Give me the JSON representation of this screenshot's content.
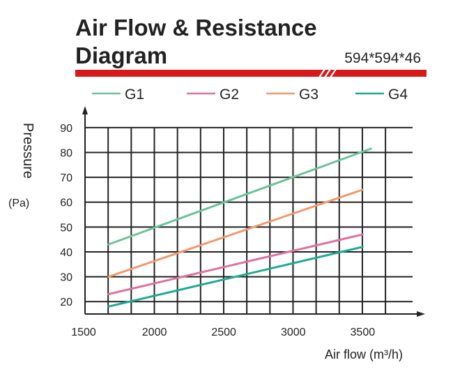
{
  "title_line1": "Air Flow & Resistance",
  "title_line2": "Diagram",
  "model": "594*594*46",
  "colors": {
    "red_bar": "#d7191c",
    "axis": "#222222",
    "G1": "#6cc49a",
    "G2": "#e0719e",
    "G3": "#f19a6c",
    "G4": "#1fab93"
  },
  "chart_data": {
    "type": "line",
    "xlabel": "Air flow (m³/h)",
    "ylabel": "Pressure",
    "ylabel_unit": "(Pa)",
    "x_ticks": [
      1500,
      2000,
      2500,
      3000,
      3500
    ],
    "y_ticks": [
      20,
      30,
      40,
      50,
      60,
      70,
      80,
      90
    ],
    "xlim": [
      1500,
      3900
    ],
    "ylim": [
      15,
      95
    ],
    "grid": true,
    "legend_position": "top",
    "series": [
      {
        "name": "G1",
        "x": [
          1670,
          3560
        ],
        "y": [
          43,
          81.5
        ]
      },
      {
        "name": "G2",
        "x": [
          1670,
          3500
        ],
        "y": [
          23,
          47
        ]
      },
      {
        "name": "G3",
        "x": [
          1670,
          3500
        ],
        "y": [
          30,
          65
        ]
      },
      {
        "name": "G4",
        "x": [
          1670,
          3500
        ],
        "y": [
          18,
          42
        ]
      }
    ]
  }
}
